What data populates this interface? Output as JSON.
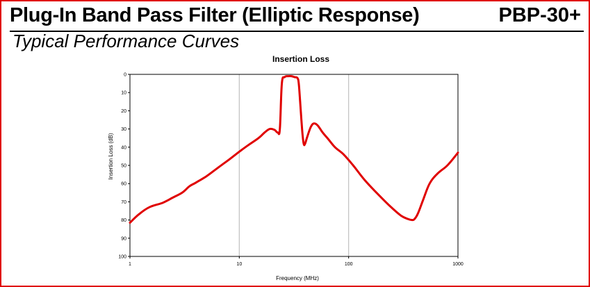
{
  "header": {
    "title": "Plug-In Band Pass Filter (Elliptic Response)",
    "model": "PBP-30+"
  },
  "subtitle": "Typical Performance Curves",
  "colors": {
    "frame": "#e00000",
    "curve": "#e00000",
    "grid": "#c0c0c0"
  },
  "chart_data": {
    "type": "line",
    "title": "Insertion Loss",
    "xlabel": "Frequency (MHz)",
    "ylabel": "Insertion Loss (dB)",
    "xscale": "log",
    "xlim": [
      1,
      1000
    ],
    "ylim": [
      0,
      100
    ],
    "y_inverted": true,
    "grid": "vertical major",
    "x_ticks": [
      "1",
      "10",
      "100",
      "1000"
    ],
    "y_ticks": [
      "0",
      "10",
      "20",
      "30",
      "40",
      "50",
      "60",
      "70",
      "80",
      "90",
      "100"
    ],
    "series": [
      {
        "x": [
          1,
          1.2,
          1.5,
          2,
          2.5,
          3,
          3.5,
          4,
          5,
          6,
          7,
          8,
          10,
          12,
          15,
          17,
          19,
          21,
          22.5,
          23.5,
          24.5,
          26,
          28,
          30,
          32,
          34,
          35,
          36,
          37,
          38,
          39,
          40,
          42,
          45,
          48,
          52,
          58,
          65,
          75,
          90,
          110,
          140,
          180,
          240,
          300,
          350,
          380,
          400,
          430,
          480,
          550,
          650,
          800,
          1000
        ],
        "y": [
          81.5,
          77,
          73,
          70.5,
          67.5,
          65,
          61.5,
          59.5,
          56,
          52.5,
          49.5,
          47,
          42.5,
          39,
          35,
          32,
          30,
          30.5,
          32,
          30,
          5,
          1.5,
          1,
          1,
          1.5,
          2,
          5,
          15,
          25,
          34,
          38.5,
          38,
          34,
          29,
          27,
          28,
          32,
          35.5,
          40,
          44,
          50,
          58,
          65,
          72.5,
          77.5,
          79.5,
          80,
          79.5,
          76.5,
          69,
          60,
          54.5,
          50,
          43
        ]
      }
    ]
  }
}
